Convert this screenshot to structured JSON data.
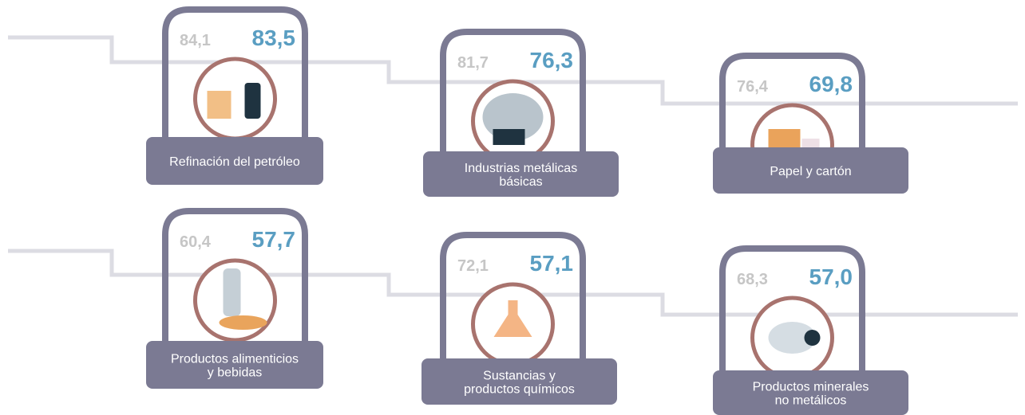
{
  "items": [
    {
      "previous": "84,1",
      "current": "83,5",
      "label": [
        "Refinación del petróleo"
      ]
    },
    {
      "previous": "81,7",
      "current": "76,3",
      "label": [
        "Industrias metálicas",
        "básicas"
      ]
    },
    {
      "previous": "76,4",
      "current": "69,8",
      "label": [
        "Papel y cartón"
      ]
    },
    {
      "previous": "60,4",
      "current": "57,7",
      "label": [
        "Productos alimenticios",
        "y bebidas"
      ]
    },
    {
      "previous": "72,1",
      "current": "57,1",
      "label": [
        "Sustancias y",
        "productos químicos"
      ]
    },
    {
      "previous": "68,3",
      "current": "57,0",
      "label": [
        "Productos minerales",
        "no metálicos"
      ]
    }
  ]
}
